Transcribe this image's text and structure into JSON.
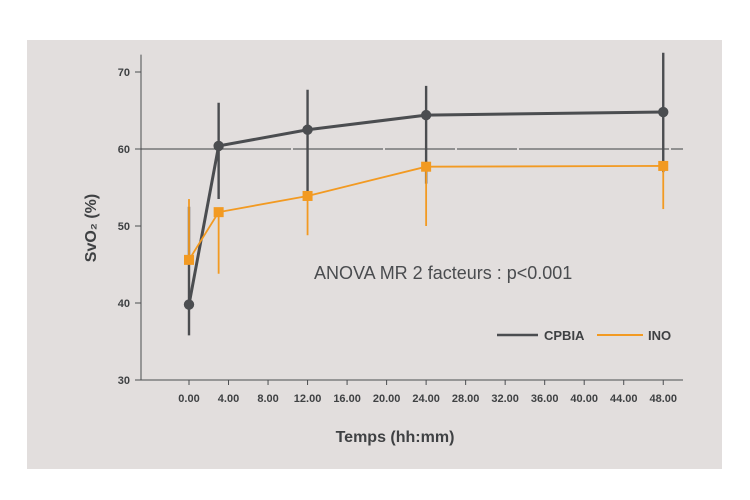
{
  "chart_data": {
    "type": "line",
    "xlabel": "Temps (hh:mm)",
    "ylabel": "SvO₂ (%)",
    "ylim": [
      30,
      72
    ],
    "yticks": [
      30,
      40,
      50,
      60,
      70
    ],
    "xticks": [
      "0.00",
      "4.00",
      "8.00",
      "12.00",
      "16.00",
      "20.00",
      "24.00",
      "28.00",
      "32.00",
      "36.00",
      "40.00",
      "44.00",
      "48.00"
    ],
    "xlim": [
      -5,
      50
    ],
    "reference_line": 60,
    "annotation": "ANOVA MR 2 facteurs : p<0.001",
    "legend_position": "bottom-right",
    "series": [
      {
        "name": "CPBIA",
        "color": "#4b4d50",
        "marker": "circle",
        "points": [
          {
            "x": 0,
            "y": 39.8,
            "err_low": 35.8,
            "err_high": 52.5
          },
          {
            "x": 3,
            "y": 60.4,
            "err_low": 53.5,
            "err_high": 66
          },
          {
            "x": 12,
            "y": 62.5,
            "err_low": 53.5,
            "err_high": 67.7
          },
          {
            "x": 24,
            "y": 64.4,
            "err_low": 55.5,
            "err_high": 68.2
          },
          {
            "x": 48,
            "y": 64.8,
            "err_low": 57,
            "err_high": 72.5
          }
        ]
      },
      {
        "name": "INO",
        "color": "#f29a22",
        "marker": "square",
        "points": [
          {
            "x": 0,
            "y": 45.6,
            "err_low": 45.6,
            "err_high": 53.5
          },
          {
            "x": 3,
            "y": 51.8,
            "err_low": 43.8,
            "err_high": 51.8
          },
          {
            "x": 12,
            "y": 53.9,
            "err_low": 48.8,
            "err_high": 53.9
          },
          {
            "x": 24,
            "y": 57.7,
            "err_low": 50,
            "err_high": 57.7
          },
          {
            "x": 48,
            "y": 57.8,
            "err_low": 52.2,
            "err_high": 57.8
          }
        ]
      }
    ]
  }
}
